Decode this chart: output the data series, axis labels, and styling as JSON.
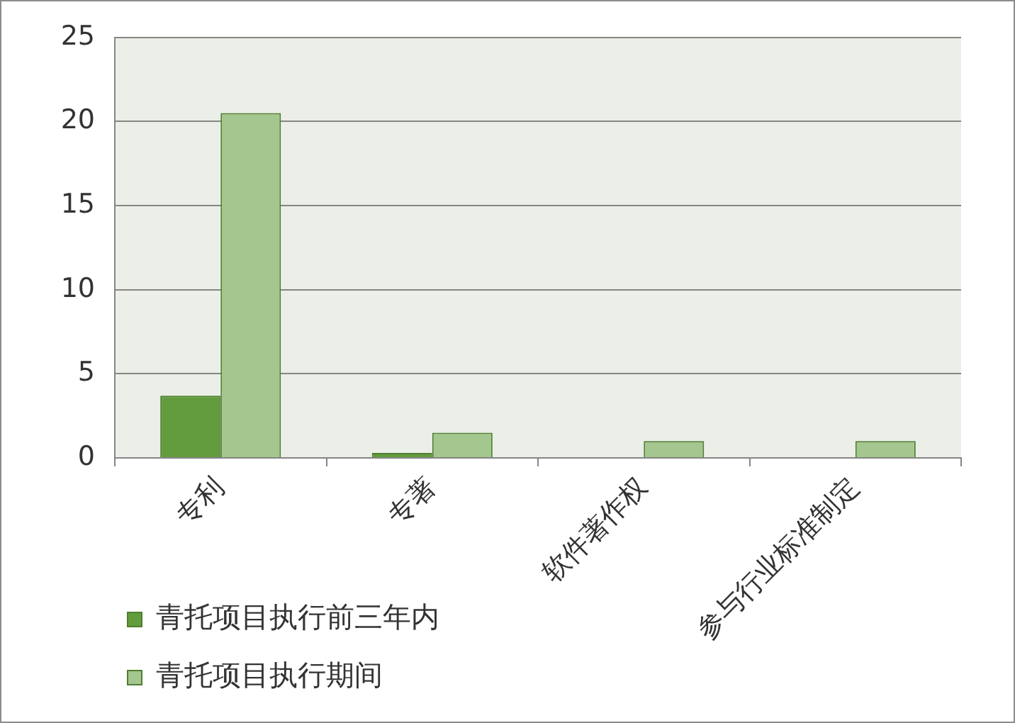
{
  "chart_data": {
    "type": "bar",
    "categories": [
      "专利",
      "专著",
      "软件著作权",
      "参与行业标准制定"
    ],
    "series": [
      {
        "name": "青托项目执行前三年内",
        "color": "#629c3c",
        "values": [
          3.7,
          0.3,
          null,
          null
        ]
      },
      {
        "name": "青托项目执行期间",
        "color": "#a4c68f",
        "values": [
          20.5,
          1.5,
          1,
          1
        ]
      }
    ],
    "ylim": [
      0,
      25
    ],
    "yticks": [
      0,
      5,
      10,
      15,
      20,
      25
    ],
    "grid": "y",
    "legend": "bottom left"
  }
}
